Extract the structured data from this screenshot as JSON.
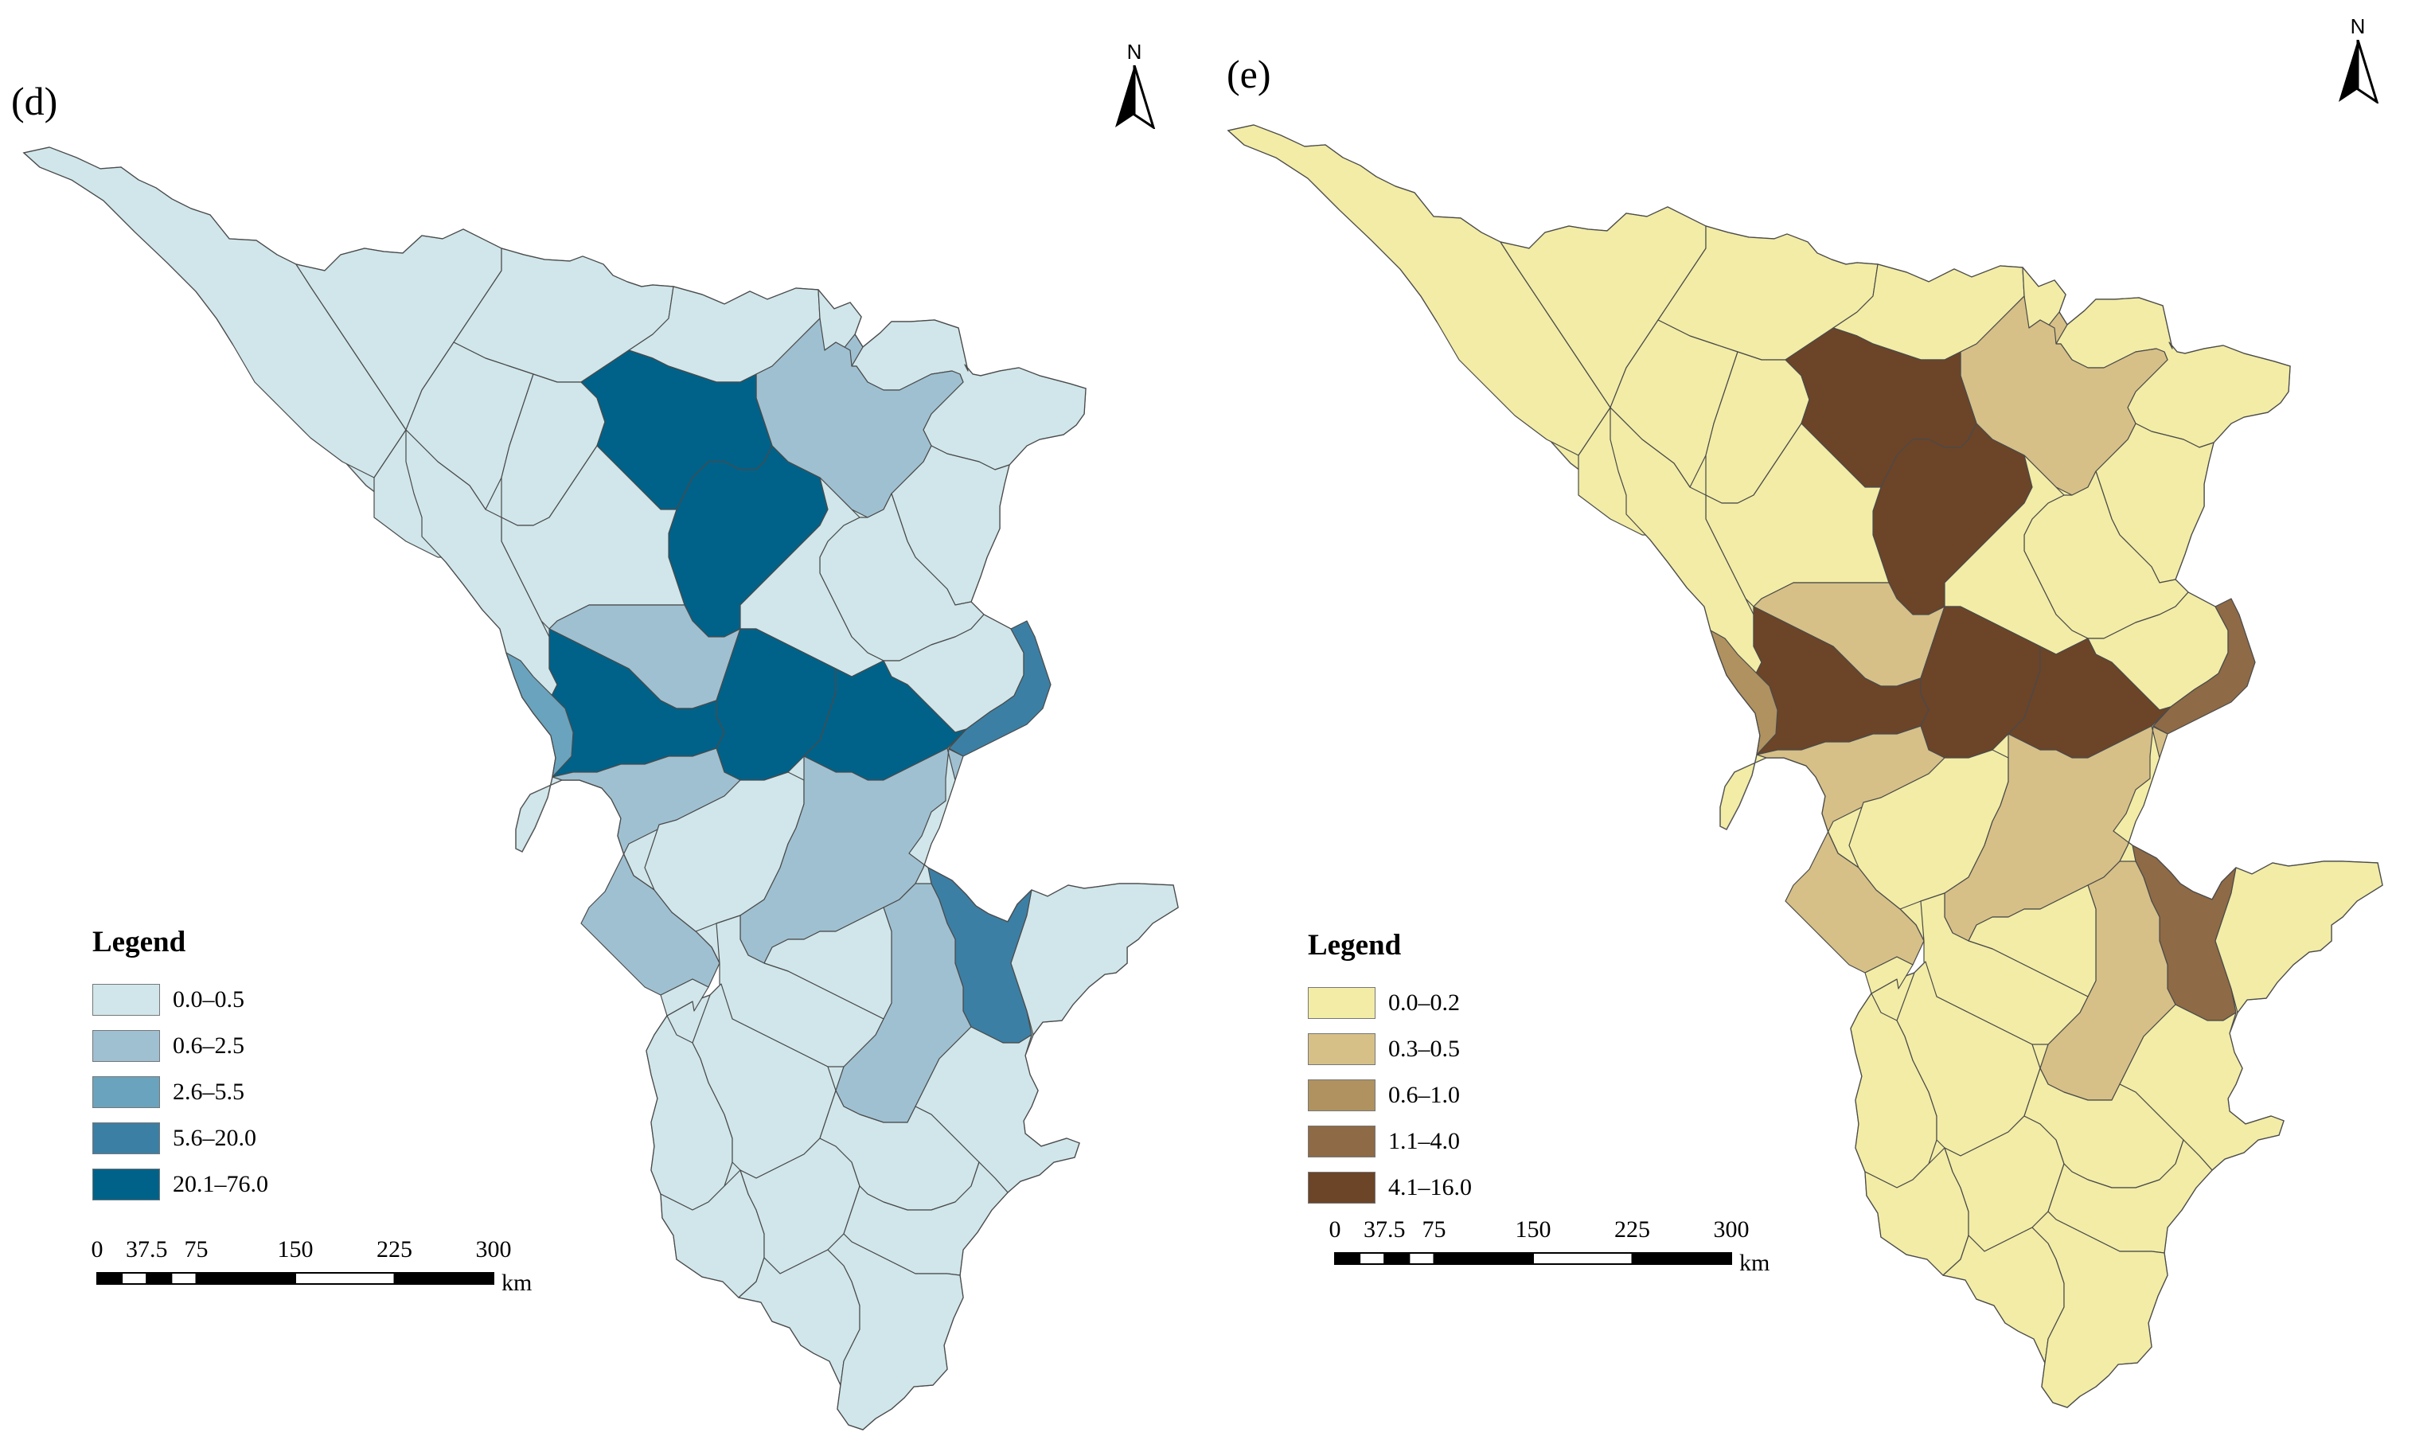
{
  "panels": [
    {
      "id": "d",
      "label": "(d)",
      "north_label": "N",
      "legend": {
        "title": "Legend",
        "classes": [
          {
            "range": "0.0–0.5",
            "color": "#d0e6ea"
          },
          {
            "range": "0.6–2.5",
            "color": "#9fc0d1"
          },
          {
            "range": "2.6–5.5",
            "color": "#6aa3bd"
          },
          {
            "range": "5.6–20.0",
            "color": "#3c7fa4"
          },
          {
            "range": "20.1–76.0",
            "color": "#006289"
          }
        ]
      },
      "scale": {
        "ticks": [
          "0",
          "37.5",
          "75",
          "150",
          "225",
          "300"
        ],
        "unit": "km"
      }
    },
    {
      "id": "e",
      "label": "(e)",
      "north_label": "N",
      "legend": {
        "title": "Legend",
        "classes": [
          {
            "range": "0.0–0.2",
            "color": "#f2eca6"
          },
          {
            "range": "0.3–0.5",
            "color": "#d6c088"
          },
          {
            "range": "0.6–1.0",
            "color": "#af9260"
          },
          {
            "range": "1.1–4.0",
            "color": "#8e6a46"
          },
          {
            "range": "4.1–16.0",
            "color": "#6c4428"
          }
        ]
      },
      "scale": {
        "ticks": [
          "0",
          "37.5",
          "75",
          "150",
          "225",
          "300"
        ],
        "unit": "km"
      }
    }
  ],
  "regions": [
    {
      "id": "nw-a",
      "d": 0,
      "e": 0
    },
    {
      "id": "nw-b",
      "d": 0,
      "e": 0
    },
    {
      "id": "nw-c",
      "d": 0,
      "e": 0
    },
    {
      "id": "n-a",
      "d": 0,
      "e": 0
    },
    {
      "id": "n-b",
      "d": 0,
      "e": 0
    },
    {
      "id": "n-c",
      "d": 0,
      "e": 0
    },
    {
      "id": "n-d",
      "d": 0,
      "e": 0
    },
    {
      "id": "n-e",
      "d": 0,
      "e": 0
    },
    {
      "id": "n-f",
      "d": 1,
      "e": 1
    },
    {
      "id": "ne-a",
      "d": 0,
      "e": 0
    },
    {
      "id": "ne-b",
      "d": 0,
      "e": 0
    },
    {
      "id": "ne-c",
      "d": 1,
      "e": 1
    },
    {
      "id": "ne-d",
      "d": 0,
      "e": 0
    },
    {
      "id": "c-north",
      "d": 4,
      "e": 4
    },
    {
      "id": "c-mid",
      "d": 4,
      "e": 4
    },
    {
      "id": "c-west",
      "d": 0,
      "e": 0
    },
    {
      "id": "c-west2",
      "d": 0,
      "e": 0
    },
    {
      "id": "c-east",
      "d": 0,
      "e": 0
    },
    {
      "id": "c-east2",
      "d": 0,
      "e": 0
    },
    {
      "id": "c-center",
      "d": 1,
      "e": 1
    },
    {
      "id": "c-south-a",
      "d": 4,
      "e": 4
    },
    {
      "id": "c-south-b",
      "d": 4,
      "e": 4
    },
    {
      "id": "c-south-c",
      "d": 4,
      "e": 4
    },
    {
      "id": "c-south-d",
      "d": 3,
      "e": 3
    },
    {
      "id": "w-edge",
      "d": 2,
      "e": 2
    },
    {
      "id": "s-a",
      "d": 1,
      "e": 1
    },
    {
      "id": "s-b",
      "d": 0,
      "e": 0
    },
    {
      "id": "s-c",
      "d": 1,
      "e": 1
    },
    {
      "id": "s-d",
      "d": 0,
      "e": 0
    },
    {
      "id": "se-a",
      "d": 3,
      "e": 3
    },
    {
      "id": "se-b",
      "d": 1,
      "e": 1
    },
    {
      "id": "se-c",
      "d": 0,
      "e": 0
    },
    {
      "id": "se-d",
      "d": 0,
      "e": 0
    },
    {
      "id": "sw-a",
      "d": 0,
      "e": 0
    },
    {
      "id": "sw-b",
      "d": 0,
      "e": 0
    },
    {
      "id": "sw-c",
      "d": 0,
      "e": 0
    },
    {
      "id": "ssw-a",
      "d": 0,
      "e": 0
    },
    {
      "id": "ssw-b",
      "d": 0,
      "e": 0
    },
    {
      "id": "ssw-c",
      "d": 0,
      "e": 0
    },
    {
      "id": "ssw-d",
      "d": 0,
      "e": 0
    },
    {
      "id": "sse-a",
      "d": 0,
      "e": 0
    },
    {
      "id": "sse-b",
      "d": 0,
      "e": 0
    },
    {
      "id": "tip-a",
      "d": 0,
      "e": 0
    },
    {
      "id": "tip-b",
      "d": 0,
      "e": 0
    }
  ]
}
